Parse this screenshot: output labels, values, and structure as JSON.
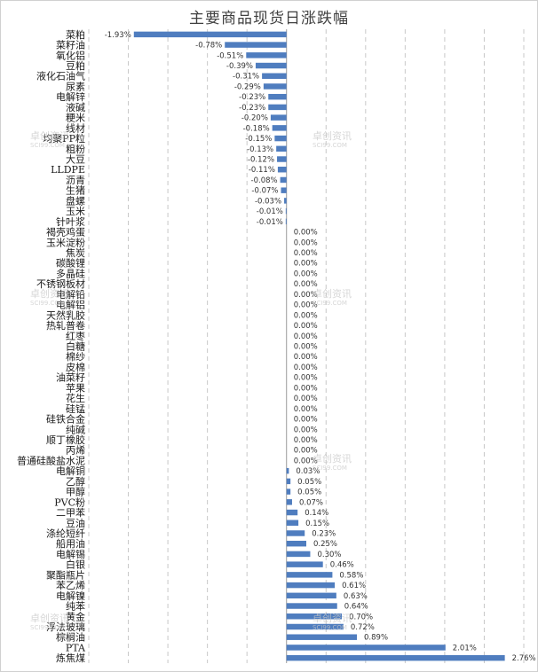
{
  "watermark": {
    "name": "卓创资讯",
    "url": "SCI99.COM"
  },
  "chart_data": {
    "type": "bar",
    "orientation": "horizontal",
    "title": "主要商品现货日涨跌幅",
    "xlabel": "",
    "ylabel": "",
    "xlim": [
      -2.5,
      3.0
    ],
    "grid": "vertical-dashed",
    "bar_color": "#4f7dbf",
    "categories": [
      "菜粕",
      "菜籽油",
      "氧化铝",
      "豆粕",
      "液化石油气",
      "尿素",
      "电解锌",
      "液碱",
      "粳米",
      "线材",
      "均聚PP粒",
      "粗粉",
      "大豆",
      "LLDPE",
      "沥青",
      "生猪",
      "盘螺",
      "玉米",
      "针叶浆",
      "褐壳鸡蛋",
      "玉米淀粉",
      "焦炭",
      "碳酸锂",
      "多晶硅",
      "不锈钢板材",
      "电解铅",
      "电解铝",
      "天然乳胶",
      "热轧普卷",
      "红枣",
      "白糖",
      "棉纱",
      "皮棉",
      "油菜籽",
      "苹果",
      "花生",
      "硅锰",
      "硅铁合金",
      "纯碱",
      "顺丁橡胶",
      "丙烯",
      "普通硅酸盐水泥",
      "电解铜",
      "乙醇",
      "甲醇",
      "PVC粉",
      "二甲苯",
      "豆油",
      "涤纶短纤",
      "船用油",
      "电解锡",
      "白银",
      "聚酯瓶片",
      "苯乙烯",
      "电解镍",
      "纯苯",
      "黄金",
      "浮法玻璃",
      "棕榈油",
      "PTA",
      "炼焦煤"
    ],
    "values": [
      -1.93,
      -0.78,
      -0.51,
      -0.39,
      -0.31,
      -0.29,
      -0.23,
      -0.23,
      -0.2,
      -0.18,
      -0.15,
      -0.13,
      -0.12,
      -0.11,
      -0.08,
      -0.07,
      -0.03,
      -0.01,
      -0.01,
      0.0,
      0.0,
      0.0,
      0.0,
      0.0,
      0.0,
      0.0,
      0.0,
      0.0,
      0.0,
      0.0,
      0.0,
      0.0,
      0.0,
      0.0,
      0.0,
      0.0,
      0.0,
      0.0,
      0.0,
      0.0,
      0.0,
      0.0,
      0.03,
      0.05,
      0.05,
      0.07,
      0.14,
      0.15,
      0.23,
      0.25,
      0.3,
      0.46,
      0.58,
      0.61,
      0.63,
      0.64,
      0.7,
      0.72,
      0.89,
      2.01,
      2.76
    ],
    "labels": [
      "-1.93%",
      "-0.78%",
      "-0.51%",
      "-0.39%",
      "-0.31%",
      "-0.29%",
      "-0.23%",
      "-0.23%",
      "-0.20%",
      "-0.18%",
      "-0.15%",
      "-0.13%",
      "-0.12%",
      "-0.11%",
      "-0.08%",
      "-0.07%",
      "-0.03%",
      "-0.01%",
      "-0.01%",
      "0.00%",
      "0.00%",
      "0.00%",
      "0.00%",
      "0.00%",
      "0.00%",
      "0.00%",
      "0.00%",
      "0.00%",
      "0.00%",
      "0.00%",
      "0.00%",
      "0.00%",
      "0.00%",
      "0.00%",
      "0.00%",
      "0.00%",
      "0.00%",
      "0.00%",
      "0.00%",
      "0.00%",
      "0.00%",
      "0.00%",
      "0.03%",
      "0.05%",
      "0.05%",
      "0.07%",
      "0.14%",
      "0.15%",
      "0.23%",
      "0.25%",
      "0.30%",
      "0.46%",
      "0.58%",
      "0.61%",
      "0.63%",
      "0.64%",
      "0.70%",
      "0.72%",
      "0.89%",
      "2.01%",
      "2.76%"
    ]
  }
}
